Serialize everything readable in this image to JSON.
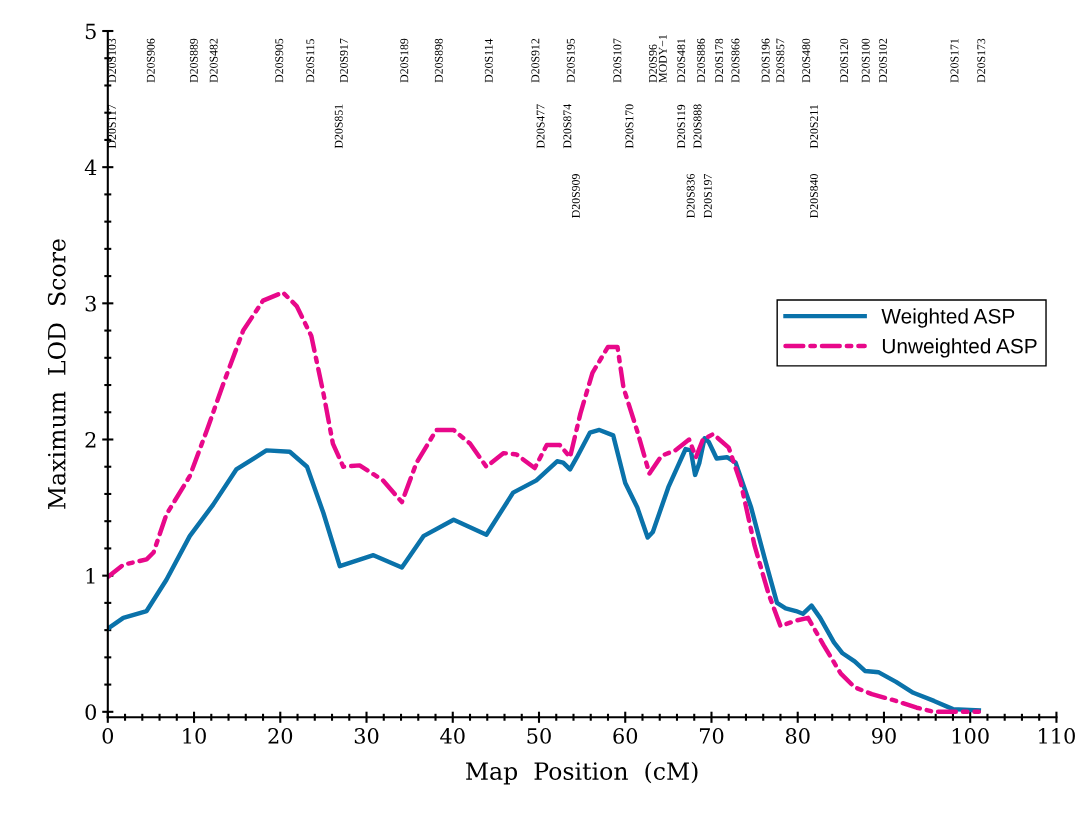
{
  "chart_data": {
    "type": "line",
    "xlabel": "Map  Position  (cM)",
    "ylabel": "Maximum  LOD  Score",
    "xlim": [
      0,
      110
    ],
    "xticks": [
      0,
      10,
      20,
      30,
      40,
      50,
      60,
      70,
      80,
      90,
      100,
      110
    ],
    "ylim": [
      -0.04,
      5
    ],
    "yticks": [
      0,
      1,
      2,
      3,
      4,
      5
    ],
    "grid": false,
    "legend": "right",
    "marker": "none",
    "series": [
      {
        "name": "Weighted ASP",
        "color": "#0a72aa",
        "line_style": "solid",
        "x": [
          0,
          1.8,
          4.5,
          6.8,
          9.5,
          12.2,
          14.9,
          18.4,
          21.1,
          23.1,
          25.0,
          26.9,
          30.8,
          34.1,
          36.6,
          40.1,
          43.9,
          47.0,
          49.7,
          52.1,
          52.8,
          53.6,
          54.4,
          55.9,
          57.0,
          58.6,
          60.0,
          61.4,
          62.6,
          63.2,
          65.0,
          67.0,
          67.6,
          68.1,
          68.6,
          69.2,
          69.7,
          70.6,
          71.8,
          72.8,
          74.6,
          76.2,
          77.6,
          78.6,
          79.8,
          80.6,
          81.6,
          82.6,
          84.2,
          85.2,
          86.6,
          87.8,
          89.4,
          91.4,
          93.4,
          95.8,
          98.0,
          101.0
        ],
        "values": [
          0.61,
          0.69,
          0.74,
          0.97,
          1.29,
          1.52,
          1.78,
          1.92,
          1.91,
          1.8,
          1.46,
          1.07,
          1.15,
          1.06,
          1.29,
          1.41,
          1.3,
          1.61,
          1.7,
          1.84,
          1.83,
          1.78,
          1.87,
          2.05,
          2.07,
          2.03,
          1.68,
          1.5,
          1.28,
          1.32,
          1.65,
          1.93,
          1.92,
          1.74,
          1.83,
          2.01,
          1.98,
          1.86,
          1.87,
          1.83,
          1.5,
          1.12,
          0.8,
          0.76,
          0.74,
          0.72,
          0.78,
          0.69,
          0.51,
          0.43,
          0.37,
          0.3,
          0.29,
          0.22,
          0.14,
          0.08,
          0.02,
          0.01
        ]
      },
      {
        "name": "Unweighted ASP",
        "color": "#e8088a",
        "line_style": "dashdot",
        "x": [
          0,
          1.8,
          4.5,
          5.3,
          6.8,
          9.5,
          11.5,
          13.4,
          15.7,
          18.0,
          20.3,
          21.9,
          23.6,
          25.0,
          26.1,
          27.3,
          29.2,
          31.9,
          34.1,
          35.8,
          38.1,
          40.1,
          42.0,
          43.9,
          45.9,
          47.4,
          49.5,
          50.9,
          52.4,
          53.6,
          54.8,
          56.2,
          58.0,
          59.1,
          59.8,
          61.4,
          62.8,
          64.2,
          65.8,
          67.4,
          68.2,
          69.0,
          70.2,
          72.0,
          73.4,
          75.0,
          76.6,
          78.0,
          79.8,
          81.2,
          83.0,
          85.0,
          86.6,
          88.6,
          91.4,
          93.8,
          95.8,
          99.8,
          101.0
        ],
        "values": [
          0.99,
          1.08,
          1.12,
          1.17,
          1.45,
          1.73,
          2.07,
          2.41,
          2.8,
          3.02,
          3.08,
          2.98,
          2.76,
          2.34,
          1.97,
          1.8,
          1.81,
          1.7,
          1.54,
          1.83,
          2.07,
          2.07,
          1.97,
          1.8,
          1.9,
          1.89,
          1.79,
          1.96,
          1.96,
          1.87,
          2.19,
          2.49,
          2.68,
          2.68,
          2.38,
          2.06,
          1.75,
          1.88,
          1.92,
          2.0,
          1.87,
          2.0,
          2.04,
          1.94,
          1.68,
          1.22,
          0.87,
          0.63,
          0.67,
          0.69,
          0.49,
          0.28,
          0.18,
          0.13,
          0.08,
          0.03,
          0.0,
          0.0,
          0.0
        ]
      }
    ],
    "annotations": [
      "D20S103",
      "D20S906",
      "D20S889",
      "D20S482",
      "D20S905",
      "D20S115",
      "D20S917",
      "D20S189",
      "D20S898",
      "D20S114",
      "D20S912",
      "D20S195",
      "D20S107",
      "D20S96\nMODY−1",
      "D20S481",
      "D20S886",
      "D20S178",
      "D20S866",
      "D20S196",
      "D20S857",
      "D20S480",
      "D20S120",
      "D20S100",
      "D20S102",
      "D20S171",
      "D20S173",
      "D20S117",
      "D20S851",
      "D20S477",
      "D20S874",
      "D20S170",
      "D20S119",
      "D20S888",
      "D20S211",
      "D20S909",
      "D20S836",
      "D20S197",
      "D20S840"
    ]
  }
}
